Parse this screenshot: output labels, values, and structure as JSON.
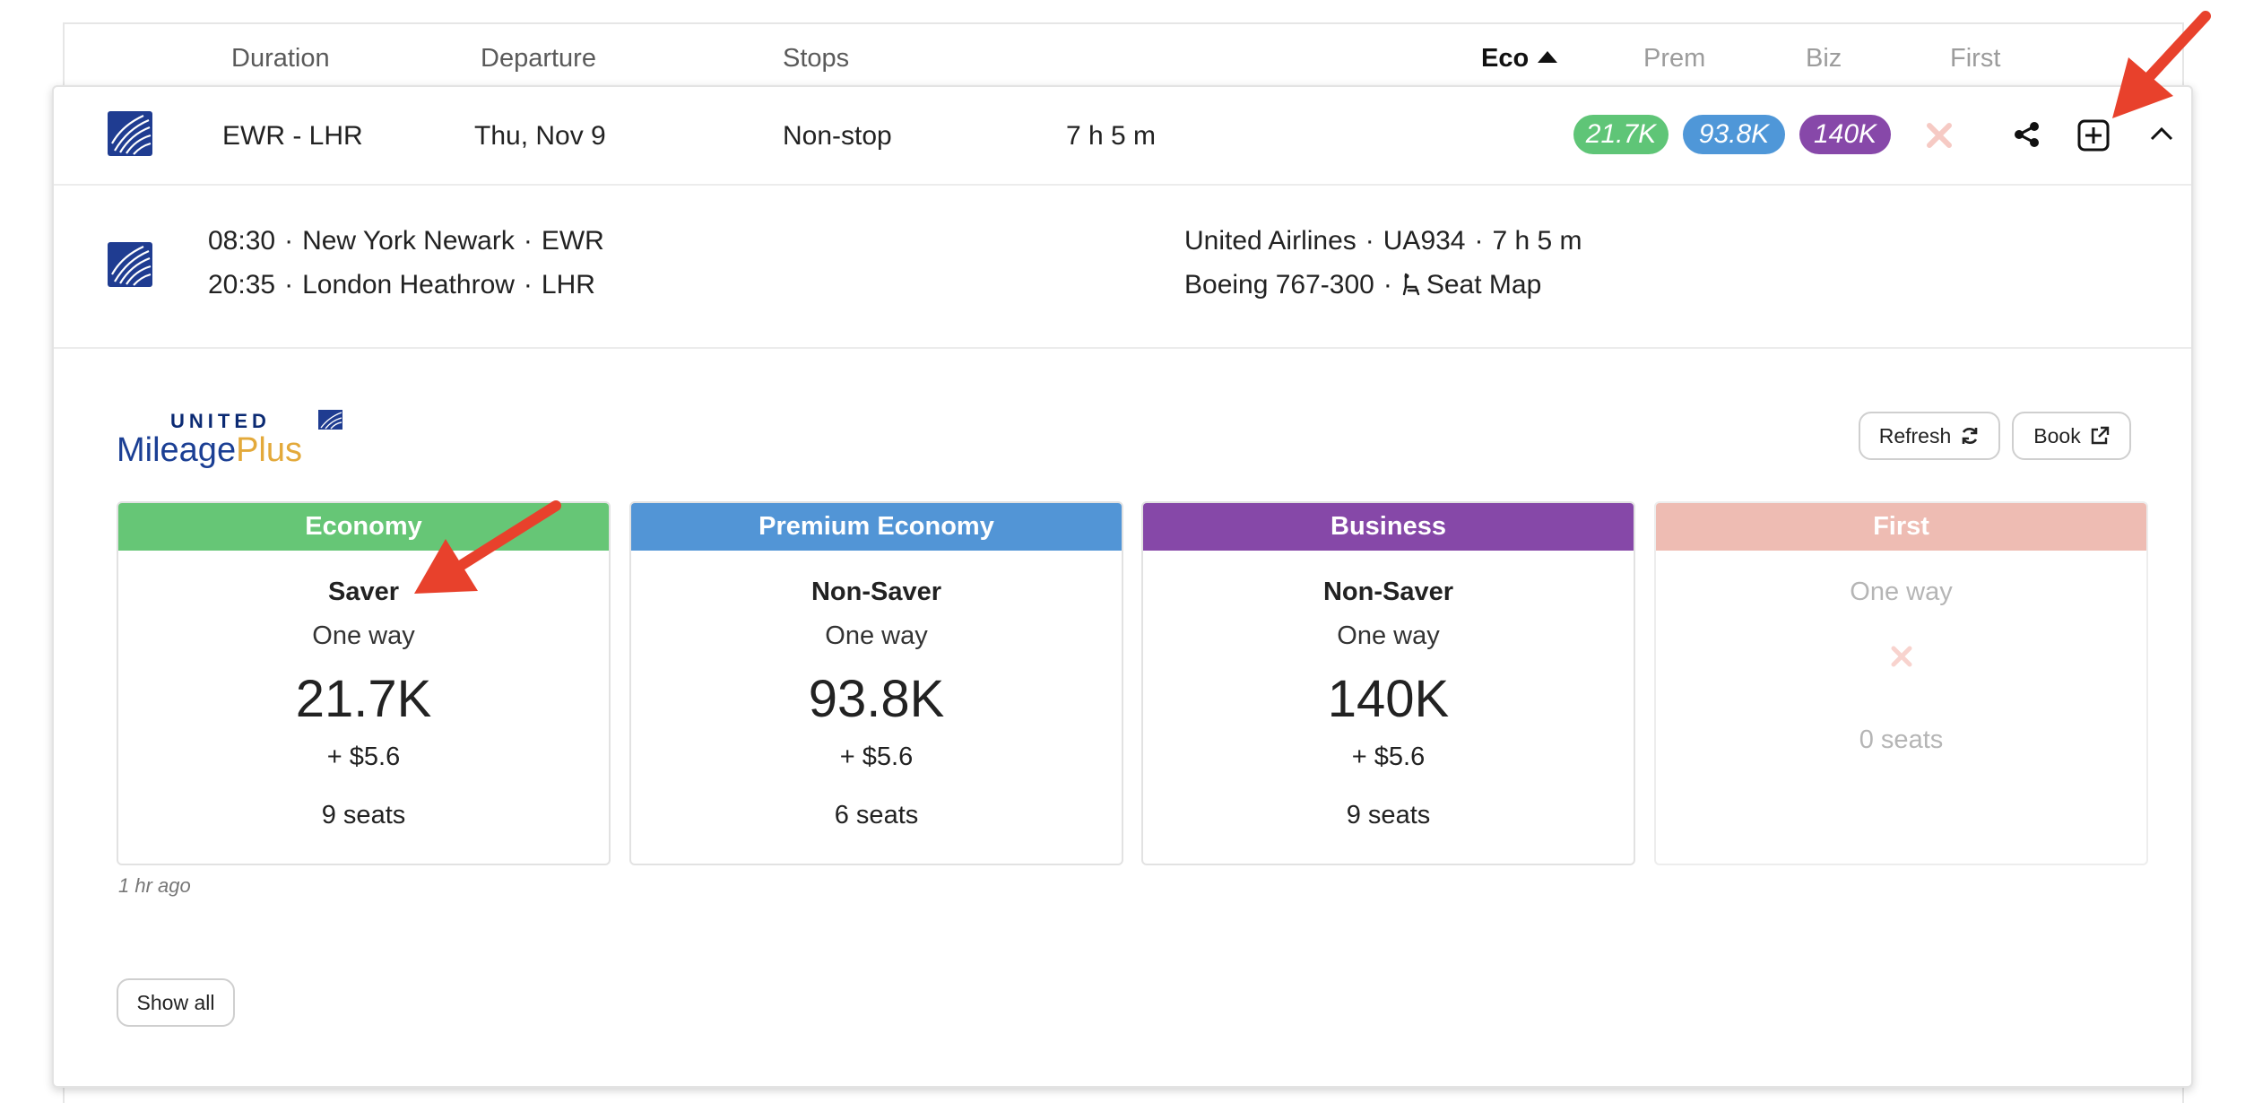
{
  "header": {
    "columns": {
      "duration": "Duration",
      "departure": "Departure",
      "stops": "Stops",
      "eco": "Eco",
      "prem": "Prem",
      "biz": "Biz",
      "first": "First"
    },
    "sort_column": "Eco",
    "sort_direction": "ascending"
  },
  "flight": {
    "route": "EWR - LHR",
    "date": "Thu, Nov 9",
    "stops": "Non-stop",
    "duration": "7 h 5 m",
    "prices": {
      "eco": "21.7K",
      "prem": "93.8K",
      "biz": "140K",
      "first_available": false
    },
    "actions": [
      "share-icon",
      "add-box-icon",
      "chevron-up-icon"
    ],
    "colors": {
      "eco": "#5fc577",
      "prem": "#4f97d8",
      "biz": "#8748a9",
      "first": "#f2bcb3",
      "unavailable_x": "#f6cac4"
    }
  },
  "segment": {
    "departure_time": "08:30",
    "departure_city": "New York Newark",
    "departure_code": "EWR",
    "arrival_time": "20:35",
    "arrival_city": "London Heathrow",
    "arrival_code": "LHR",
    "airline": "United Airlines",
    "flight_number": "UA934",
    "duration": "7 h 5 m",
    "aircraft": "Boeing 767-300",
    "seat_map_label": "Seat Map"
  },
  "program": {
    "logo_line1": "UNITED",
    "logo_line2a": "Mileage",
    "logo_line2b": "Plus",
    "refresh_label": "Refresh",
    "book_label": "Book"
  },
  "fares": [
    {
      "cabin": "Economy",
      "type": "Saver",
      "direction": "One way",
      "miles": "21.7K",
      "taxes": "+ $5.6",
      "seats": "9 seats",
      "color": "#66c676"
    },
    {
      "cabin": "Premium Economy",
      "type": "Non-Saver",
      "direction": "One way",
      "miles": "93.8K",
      "taxes": "+ $5.6",
      "seats": "6 seats",
      "color": "#5295d6"
    },
    {
      "cabin": "Business",
      "type": "Non-Saver",
      "direction": "One way",
      "miles": "140K",
      "taxes": "+ $5.6",
      "seats": "9 seats",
      "color": "#8648a8"
    },
    {
      "cabin": "First",
      "type": "",
      "direction": "One way",
      "miles": "",
      "taxes": "",
      "seats": "0 seats",
      "color": "#eebcb3",
      "available": false
    }
  ],
  "updated": "1 hr ago",
  "show_all_label": "Show all",
  "annotation_color": "#e8412c"
}
